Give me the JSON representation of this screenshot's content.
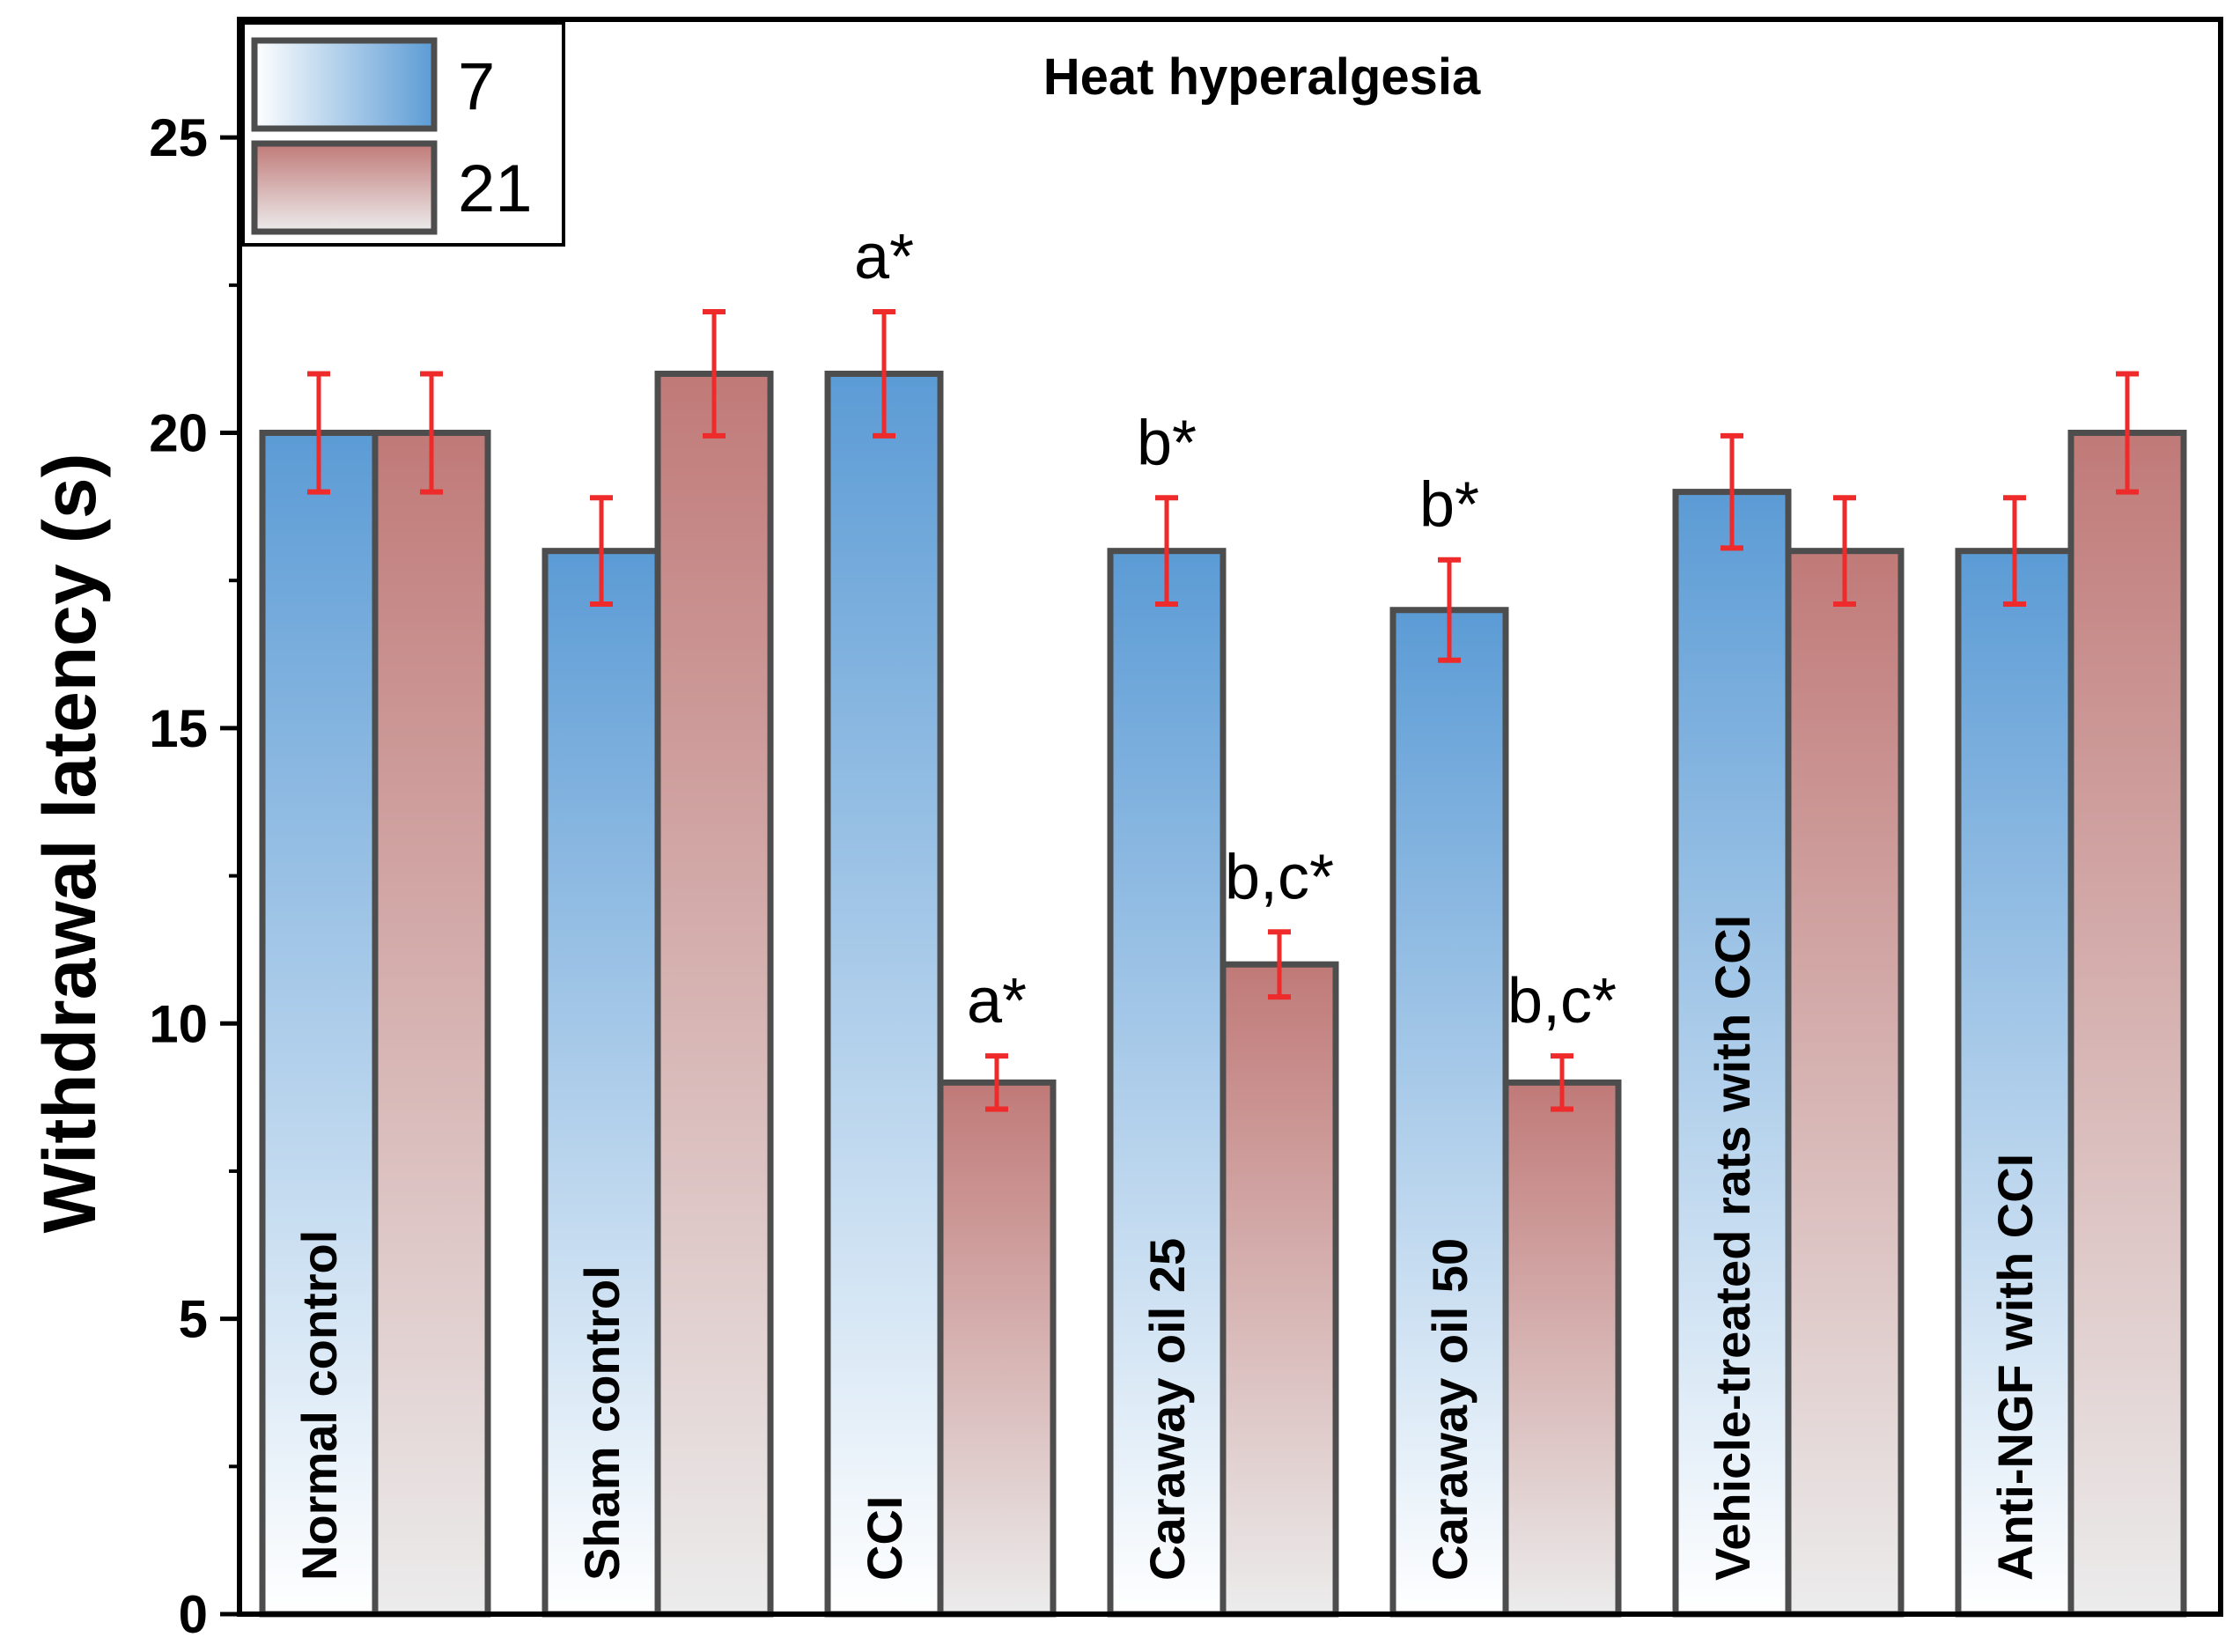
{
  "chart_data": {
    "type": "bar",
    "title": "Heat hyperalgesia",
    "xlabel": "",
    "ylabel": "Withdrawal latency (s)",
    "ylim": [
      0,
      27
    ],
    "yticks": [
      "0",
      "5",
      "10",
      "15",
      "20",
      "25"
    ],
    "categories": [
      "Normal control",
      "Sham control",
      "CCI",
      "Caraway oil 25",
      "Caraway oil 50",
      "Vehicle-treated rats with CCI",
      "Anti-NGF with CCI"
    ],
    "series": [
      {
        "name": "7",
        "values": [
          20,
          18,
          21,
          18,
          17,
          19,
          18
        ],
        "errors": [
          1,
          0.9,
          1.05,
          0.9,
          0.85,
          0.95,
          0.9
        ],
        "annotations": [
          "",
          "",
          "a*",
          "b*",
          "b*",
          "",
          ""
        ],
        "color_top": "#5b9bd5",
        "color_bottom": "#ffffff"
      },
      {
        "name": "21",
        "values": [
          20,
          21,
          9,
          11,
          9,
          18,
          20
        ],
        "errors": [
          1,
          1.05,
          0.45,
          0.55,
          0.45,
          0.9,
          1
        ],
        "annotations": [
          "",
          "",
          "a*",
          "b,c*",
          "b,c*",
          "",
          ""
        ],
        "color_top": "#c07a78",
        "color_bottom": "#ececec"
      }
    ],
    "legend": {
      "position": "top-left",
      "entries": [
        "7",
        "21"
      ]
    },
    "grid": false,
    "error_bar_color": "#ee2a2a",
    "bar_edge_color": "#4d4d4d"
  }
}
